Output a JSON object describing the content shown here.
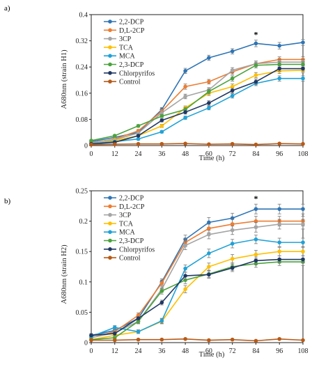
{
  "panels": [
    {
      "label": "a)"
    },
    {
      "label": "b)"
    }
  ],
  "chart_data": [
    {
      "type": "line",
      "ylabel": "A680nm (strain H1)",
      "xlabel": "Time (h)",
      "x": [
        0,
        12,
        24,
        36,
        48,
        60,
        72,
        84,
        96,
        108
      ],
      "x_ticks": [
        "0",
        "12",
        "24",
        "36",
        "48",
        "60",
        "72",
        "84",
        "96",
        "108"
      ],
      "ylim": [
        0,
        0.4
      ],
      "y_ticks": [
        "0",
        "0.08",
        "0.16",
        "0.24",
        "0.32",
        "0.4"
      ],
      "y_tick_values": [
        0,
        0.08,
        0.16,
        0.24,
        0.32,
        0.4
      ],
      "legend_position": "top-left",
      "annotation": {
        "text": "*",
        "x": 84
      },
      "series": [
        {
          "name": "2,2-DCP",
          "color": "#2e75b6",
          "values": [
            0.012,
            0.025,
            0.04,
            0.11,
            0.228,
            0.268,
            0.288,
            0.312,
            0.305,
            0.315
          ],
          "errors": [
            0.003,
            0.003,
            0.004,
            0.006,
            0.008,
            0.008,
            0.008,
            0.01,
            0.01,
            0.009
          ]
        },
        {
          "name": "D,L-2CP",
          "color": "#ed7d31",
          "values": [
            0.008,
            0.02,
            0.045,
            0.105,
            0.18,
            0.195,
            0.225,
            0.25,
            0.263,
            0.263
          ],
          "errors": [
            0.003,
            0.003,
            0.004,
            0.006,
            0.008,
            0.007,
            0.008,
            0.008,
            0.008,
            0.008
          ]
        },
        {
          "name": "3CP",
          "color": "#a5a5a5",
          "values": [
            0.01,
            0.018,
            0.038,
            0.1,
            0.15,
            0.17,
            0.23,
            0.25,
            0.255,
            0.255
          ],
          "errors": [
            0.003,
            0.003,
            0.004,
            0.005,
            0.007,
            0.007,
            0.008,
            0.008,
            0.008,
            0.008
          ]
        },
        {
          "name": "TCA",
          "color": "#ffc000",
          "values": [
            0.005,
            0.015,
            0.03,
            0.06,
            0.115,
            0.16,
            0.18,
            0.215,
            0.228,
            0.23
          ],
          "errors": [
            0.002,
            0.003,
            0.003,
            0.005,
            0.006,
            0.007,
            0.008,
            0.008,
            0.008,
            0.008
          ]
        },
        {
          "name": "MCA",
          "color": "#1fa2d8",
          "values": [
            0.006,
            0.012,
            0.02,
            0.042,
            0.085,
            0.115,
            0.152,
            0.19,
            0.205,
            0.205
          ],
          "errors": [
            0.002,
            0.003,
            0.003,
            0.004,
            0.005,
            0.006,
            0.007,
            0.007,
            0.008,
            0.008
          ]
        },
        {
          "name": "2,3-DCP",
          "color": "#4aa33c",
          "values": [
            0.015,
            0.03,
            0.06,
            0.09,
            0.11,
            0.165,
            0.205,
            0.245,
            0.248,
            0.248
          ],
          "errors": [
            0.003,
            0.003,
            0.004,
            0.005,
            0.006,
            0.007,
            0.008,
            0.008,
            0.008,
            0.008
          ]
        },
        {
          "name": "Chlorpyrifos",
          "color": "#1f3864",
          "values": [
            0.005,
            0.01,
            0.03,
            0.077,
            0.102,
            0.13,
            0.168,
            0.195,
            0.235,
            0.235
          ],
          "errors": [
            0.002,
            0.003,
            0.003,
            0.005,
            0.006,
            0.007,
            0.007,
            0.008,
            0.008,
            0.008
          ]
        },
        {
          "name": "Control",
          "color": "#b85a16",
          "values": [
            0.003,
            0.004,
            0.005,
            0.005,
            0.006,
            0.004,
            0.005,
            0.003,
            0.006,
            0.005
          ],
          "errors": [
            0.001,
            0.001,
            0.001,
            0.001,
            0.001,
            0.001,
            0.001,
            0.001,
            0.001,
            0.001
          ]
        }
      ]
    },
    {
      "type": "line",
      "ylabel": "A680nm (strain H2)",
      "xlabel": "Time (h)",
      "x": [
        0,
        12,
        24,
        36,
        48,
        60,
        72,
        84,
        96,
        108
      ],
      "x_ticks": [
        "0",
        "12",
        "24",
        "36",
        "48",
        "60",
        "72",
        "84",
        "96",
        "108"
      ],
      "ylim": [
        0,
        0.25
      ],
      "y_ticks": [
        "0",
        "0.05",
        "0.1",
        "0.15",
        "0.2",
        "0.25"
      ],
      "y_tick_values": [
        0,
        0.05,
        0.1,
        0.15,
        0.2,
        0.25
      ],
      "legend_position": "top-left",
      "annotation": {
        "text": "*",
        "x": 84
      },
      "series": [
        {
          "name": "2,2-DCP",
          "color": "#2e75b6",
          "values": [
            0.012,
            0.02,
            0.04,
            0.1,
            0.17,
            0.198,
            0.205,
            0.22,
            0.22,
            0.22
          ],
          "errors": [
            0.003,
            0.003,
            0.004,
            0.005,
            0.007,
            0.008,
            0.008,
            0.008,
            0.008,
            0.008
          ]
        },
        {
          "name": "D,L-2CP",
          "color": "#ed7d31",
          "values": [
            0.008,
            0.018,
            0.045,
            0.098,
            0.165,
            0.188,
            0.195,
            0.2,
            0.2,
            0.2
          ],
          "errors": [
            0.003,
            0.003,
            0.004,
            0.005,
            0.007,
            0.007,
            0.008,
            0.008,
            0.008,
            0.008
          ]
        },
        {
          "name": "3CP",
          "color": "#a5a5a5",
          "values": [
            0.008,
            0.016,
            0.035,
            0.088,
            0.16,
            0.178,
            0.185,
            0.19,
            0.195,
            0.195
          ],
          "errors": [
            0.003,
            0.003,
            0.004,
            0.005,
            0.007,
            0.007,
            0.007,
            0.008,
            0.008,
            0.008
          ]
        },
        {
          "name": "TCA",
          "color": "#ffc000",
          "values": [
            0.005,
            0.012,
            0.018,
            0.035,
            0.088,
            0.125,
            0.138,
            0.145,
            0.15,
            0.15
          ],
          "errors": [
            0.002,
            0.003,
            0.003,
            0.004,
            0.006,
            0.006,
            0.007,
            0.007,
            0.007,
            0.007
          ]
        },
        {
          "name": "MCA",
          "color": "#1fa2d8",
          "values": [
            0.01,
            0.025,
            0.018,
            0.036,
            0.122,
            0.147,
            0.163,
            0.17,
            0.165,
            0.165
          ],
          "errors": [
            0.003,
            0.003,
            0.003,
            0.004,
            0.006,
            0.007,
            0.007,
            0.007,
            0.007,
            0.007
          ]
        },
        {
          "name": "2,3-DCP",
          "color": "#4aa33c",
          "values": [
            0.005,
            0.008,
            0.035,
            0.085,
            0.103,
            0.113,
            0.125,
            0.13,
            0.133,
            0.133
          ],
          "errors": [
            0.002,
            0.002,
            0.003,
            0.005,
            0.006,
            0.006,
            0.006,
            0.006,
            0.006,
            0.006
          ]
        },
        {
          "name": "Chlorpyrifos",
          "color": "#1f3864",
          "values": [
            0.012,
            0.015,
            0.04,
            0.066,
            0.11,
            0.112,
            0.123,
            0.135,
            0.137,
            0.137
          ],
          "errors": [
            0.002,
            0.003,
            0.003,
            0.004,
            0.006,
            0.006,
            0.006,
            0.006,
            0.006,
            0.006
          ]
        },
        {
          "name": "Control",
          "color": "#b85a16",
          "values": [
            0.004,
            0.004,
            0.005,
            0.005,
            0.006,
            0.004,
            0.005,
            0.003,
            0.006,
            0.004
          ],
          "errors": [
            0.001,
            0.001,
            0.001,
            0.001,
            0.001,
            0.001,
            0.001,
            0.001,
            0.001,
            0.001
          ]
        }
      ]
    }
  ]
}
